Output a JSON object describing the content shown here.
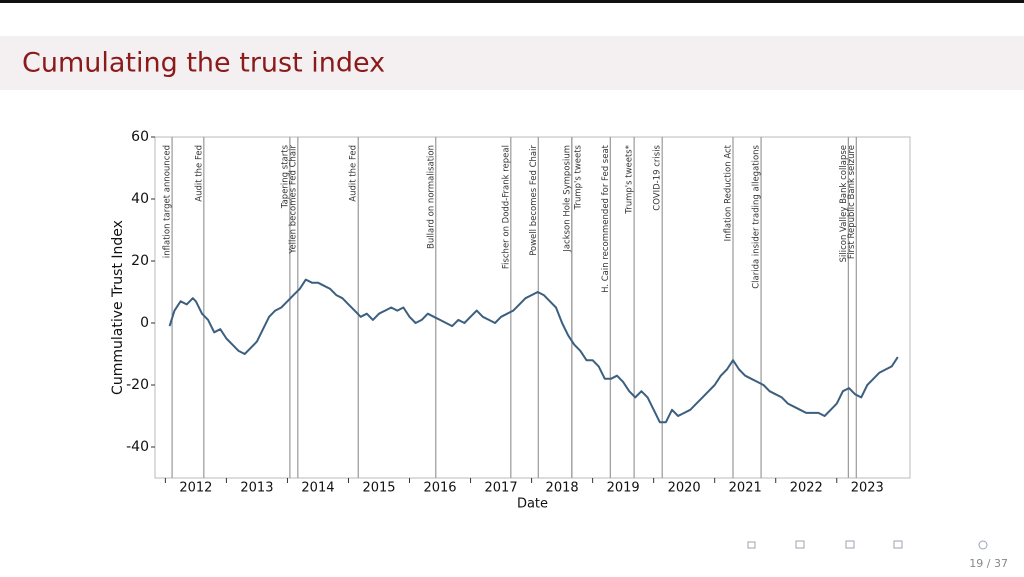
{
  "slide": {
    "title": "Cumulating the trust index",
    "page": "19 / 37"
  },
  "chart_data": {
    "type": "line",
    "color": "#3c5f80",
    "ylabel": "Cummulative Trust Index",
    "xlabel": "Date",
    "xlim": [
      2011.83,
      2024.2
    ],
    "ylim": [
      -50,
      60
    ],
    "yticks": [
      -40,
      -20,
      0,
      20,
      40,
      60
    ],
    "xticks": [
      2012,
      2013,
      2014,
      2015,
      2016,
      2017,
      2018,
      2019,
      2020,
      2021,
      2022,
      2023
    ],
    "x": [
      2012.07,
      2012.15,
      2012.25,
      2012.35,
      2012.45,
      2012.5,
      2012.6,
      2012.7,
      2012.8,
      2012.9,
      2013.0,
      2013.1,
      2013.2,
      2013.3,
      2013.4,
      2013.5,
      2013.6,
      2013.7,
      2013.8,
      2013.9,
      2014.0,
      2014.1,
      2014.2,
      2014.3,
      2014.4,
      2014.5,
      2014.6,
      2014.7,
      2014.8,
      2014.9,
      2015.0,
      2015.1,
      2015.2,
      2015.3,
      2015.4,
      2015.5,
      2015.6,
      2015.7,
      2015.8,
      2015.9,
      2016.0,
      2016.1,
      2016.2,
      2016.3,
      2016.4,
      2016.5,
      2016.6,
      2016.7,
      2016.8,
      2016.9,
      2017.0,
      2017.1,
      2017.2,
      2017.3,
      2017.4,
      2017.5,
      2017.6,
      2017.7,
      2017.8,
      2017.9,
      2018.0,
      2018.1,
      2018.2,
      2018.3,
      2018.4,
      2018.5,
      2018.6,
      2018.7,
      2018.8,
      2018.9,
      2019.0,
      2019.1,
      2019.2,
      2019.3,
      2019.4,
      2019.5,
      2019.6,
      2019.7,
      2019.8,
      2019.9,
      2020.0,
      2020.1,
      2020.2,
      2020.3,
      2020.4,
      2020.5,
      2020.6,
      2020.7,
      2020.8,
      2020.9,
      2021.0,
      2021.1,
      2021.2,
      2021.3,
      2021.4,
      2021.5,
      2021.6,
      2021.7,
      2021.8,
      2021.9,
      2022.0,
      2022.1,
      2022.2,
      2022.3,
      2022.4,
      2022.5,
      2022.6,
      2022.7,
      2022.8,
      2022.9,
      2023.0,
      2023.1,
      2023.2,
      2023.3,
      2023.4,
      2023.5,
      2023.6,
      2023.7,
      2023.8,
      2023.9,
      2024.0
    ],
    "values": [
      -1,
      4,
      7,
      6,
      8,
      7,
      3,
      1,
      -3,
      -2,
      -5,
      -7,
      -9,
      -10,
      -8,
      -6,
      -2,
      2,
      4,
      5,
      7,
      9,
      11,
      14,
      13,
      13,
      12,
      11,
      9,
      8,
      6,
      4,
      2,
      3,
      1,
      3,
      4,
      5,
      4,
      5,
      2,
      0,
      1,
      3,
      2,
      1,
      0,
      -1,
      1,
      0,
      2,
      4,
      2,
      1,
      0,
      2,
      3,
      4,
      6,
      8,
      9,
      10,
      9,
      7,
      5,
      0,
      -4,
      -7,
      -9,
      -12,
      -12,
      -14,
      -18,
      -18,
      -17,
      -19,
      -22,
      -24,
      -22,
      -24,
      -28,
      -32,
      -32,
      -28,
      -30,
      -29,
      -28,
      -26,
      -24,
      -22,
      -20,
      -17,
      -15,
      -12,
      -15,
      -17,
      -18,
      -19,
      -20,
      -22,
      -23,
      -24,
      -26,
      -27,
      -28,
      -29,
      -29,
      -29,
      -30,
      -28,
      -26,
      -22,
      -21,
      -23,
      -24,
      -20,
      -18,
      -16,
      -15,
      -14,
      -11
    ],
    "events": [
      {
        "x": 2012.11,
        "label": "inflation target announced"
      },
      {
        "x": 2012.63,
        "label": "Audit the Fed"
      },
      {
        "x": 2014.04,
        "label": "Tapering starts"
      },
      {
        "x": 2014.17,
        "label": "Yellen becomes Fed Chair"
      },
      {
        "x": 2015.16,
        "label": "Audit the Fed"
      },
      {
        "x": 2016.43,
        "label": "Bullard on normalisation"
      },
      {
        "x": 2017.66,
        "label": "Fischer on Dodd-Frank repeal"
      },
      {
        "x": 2018.11,
        "label": "Powell becomes Fed Chair"
      },
      {
        "x": 2018.66,
        "label": "Jackson Hole Symposium"
      },
      {
        "x": 2018.66,
        "label": "Trump's tweets"
      },
      {
        "x": 2019.29,
        "label": "H. Cain recommended for Fed seat"
      },
      {
        "x": 2019.68,
        "label": "Trump's tweets*"
      },
      {
        "x": 2020.14,
        "label": "COVID-19 crisis"
      },
      {
        "x": 2021.3,
        "label": "Inflation Reduction Act"
      },
      {
        "x": 2021.76,
        "label": "Clarida insider trading allegations"
      },
      {
        "x": 2023.19,
        "label": "Silicon Valley Bank collapse"
      },
      {
        "x": 2023.32,
        "label": "First Republic Bank seizure"
      }
    ]
  }
}
